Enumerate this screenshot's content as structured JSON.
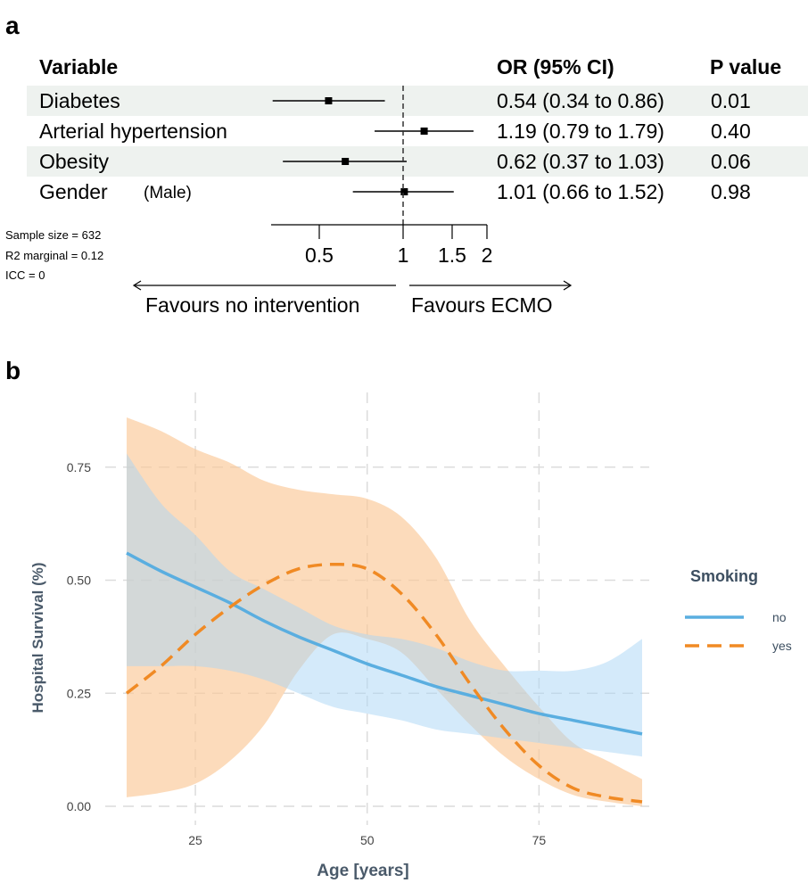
{
  "chart_data": [
    {
      "type": "forest",
      "panel_label": "a",
      "headers": {
        "variable": "Variable",
        "or": "OR (95% CI)",
        "p": "P value"
      },
      "rows": [
        {
          "label": "Diabetes",
          "sublabel": "",
          "or": 0.54,
          "lo": 0.34,
          "hi": 0.86,
          "or_text": "0.54 (0.34 to 0.86)",
          "p_text": "0.01",
          "shaded": true
        },
        {
          "label": "Arterial hypertension",
          "sublabel": "",
          "or": 1.19,
          "lo": 0.79,
          "hi": 1.79,
          "or_text": "1.19 (0.79 to 1.79)",
          "p_text": "0.40",
          "shaded": false
        },
        {
          "label": "Obesity",
          "sublabel": "",
          "or": 0.62,
          "lo": 0.37,
          "hi": 1.03,
          "or_text": "0.62 (0.37 to 1.03)",
          "p_text": "0.06",
          "shaded": true
        },
        {
          "label": "Gender",
          "sublabel": "(Male)",
          "or": 1.01,
          "lo": 0.66,
          "hi": 1.52,
          "or_text": "1.01 (0.66 to 1.52)",
          "p_text": "0.98",
          "shaded": false
        }
      ],
      "x_scale": "log",
      "x_ticks": [
        0.5,
        1,
        1.5,
        2
      ],
      "x_tick_labels": [
        "0.5",
        "1",
        "1.5",
        "2"
      ],
      "reference_line": 1,
      "stats": [
        "Sample size = 632",
        "R2 marginal = 0.12",
        "ICC = 0"
      ],
      "favours_left": "Favours no intervention",
      "favours_right": "Favours ECMO",
      "colors": {
        "row_shade": "#eef2ef",
        "marker": "#000000"
      }
    },
    {
      "type": "line",
      "panel_label": "b",
      "xlabel": "Age [years]",
      "ylabel": "Hospital Survival (%)",
      "xlim": [
        15,
        90
      ],
      "ylim": [
        0,
        0.86
      ],
      "x_ticks": [
        25,
        50,
        75
      ],
      "y_ticks": [
        0.0,
        0.25,
        0.5,
        0.75
      ],
      "y_tick_labels": [
        "0.00",
        "0.25",
        "0.50",
        "0.75"
      ],
      "grid": true,
      "legend_title": "Smoking",
      "legend_position": "right",
      "series": [
        {
          "name": "no",
          "color": "#5aaee0",
          "band_color": "#a9d6f5",
          "dash": false,
          "x": [
            15,
            20,
            25,
            30,
            35,
            40,
            45,
            50,
            55,
            60,
            65,
            70,
            75,
            80,
            85,
            90
          ],
          "y": [
            0.56,
            0.52,
            0.485,
            0.45,
            0.41,
            0.375,
            0.345,
            0.315,
            0.29,
            0.265,
            0.245,
            0.225,
            0.205,
            0.19,
            0.175,
            0.16
          ],
          "lower": [
            0.31,
            0.31,
            0.31,
            0.3,
            0.28,
            0.25,
            0.22,
            0.205,
            0.19,
            0.17,
            0.16,
            0.15,
            0.14,
            0.13,
            0.12,
            0.11
          ],
          "upper": [
            0.78,
            0.67,
            0.6,
            0.52,
            0.48,
            0.44,
            0.4,
            0.38,
            0.37,
            0.35,
            0.32,
            0.3,
            0.3,
            0.3,
            0.32,
            0.37
          ]
        },
        {
          "name": "yes",
          "color": "#f08a24",
          "band_color": "#fbc896",
          "dash": true,
          "x": [
            15,
            20,
            25,
            30,
            35,
            40,
            45,
            50,
            55,
            60,
            65,
            70,
            75,
            80,
            85,
            90
          ],
          "y": [
            0.25,
            0.31,
            0.38,
            0.44,
            0.49,
            0.525,
            0.535,
            0.525,
            0.47,
            0.38,
            0.27,
            0.17,
            0.09,
            0.04,
            0.02,
            0.01
          ],
          "lower": [
            0.02,
            0.03,
            0.05,
            0.1,
            0.18,
            0.3,
            0.38,
            0.37,
            0.34,
            0.26,
            0.18,
            0.11,
            0.06,
            0.025,
            0.01,
            0.0
          ],
          "upper": [
            0.86,
            0.83,
            0.79,
            0.76,
            0.72,
            0.7,
            0.69,
            0.68,
            0.64,
            0.55,
            0.41,
            0.31,
            0.22,
            0.14,
            0.1,
            0.06
          ]
        }
      ]
    }
  ]
}
